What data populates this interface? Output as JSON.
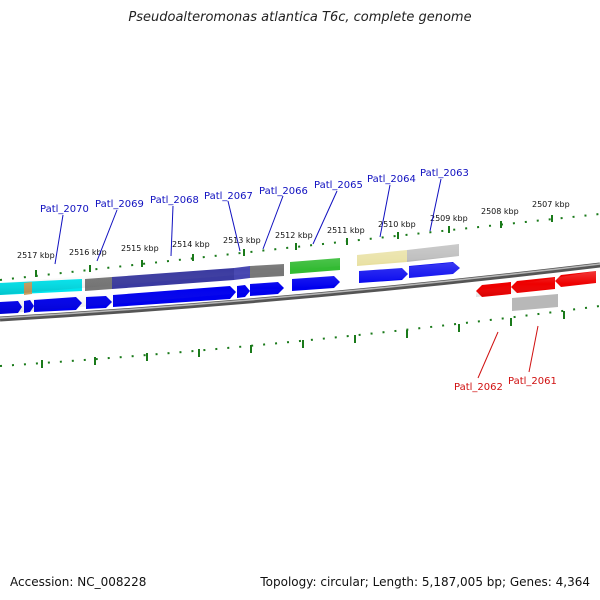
{
  "title": "Pseudoalteromonas atlantica T6c, complete genome",
  "footer": {
    "accession": "Accession: NC_008228",
    "summary": "Topology: circular; Length: 5,187,005 bp; Genes: 4,364"
  },
  "colors": {
    "backbone": "#777777",
    "tick": "#1a7a1a",
    "forward_label": "#1010c0",
    "reverse_label": "#d01010",
    "cds": "#0000ee",
    "reverse_cds": "#ee0000",
    "cyan": "#00e5ee",
    "navy": "#3a3aa0",
    "gray": "#777777",
    "lightgray": "#b8b8b8",
    "green": "#33bb33",
    "khaki": "#e8e0a0",
    "tan": "#c8a060"
  },
  "ruler_labels": [
    "2517 kbp",
    "2516 kbp",
    "2515 kbp",
    "2514 kbp",
    "2513 kbp",
    "2512 kbp",
    "2511 kbp",
    "2510 kbp",
    "2509 kbp",
    "2508 kbp",
    "2507 kbp"
  ],
  "forward_genes": [
    "Patl_2070",
    "Patl_2069",
    "Patl_2068",
    "Patl_2067",
    "Patl_2066",
    "Patl_2065",
    "Patl_2064",
    "Patl_2063"
  ],
  "reverse_genes": [
    "Patl_2062",
    "Patl_2061"
  ]
}
